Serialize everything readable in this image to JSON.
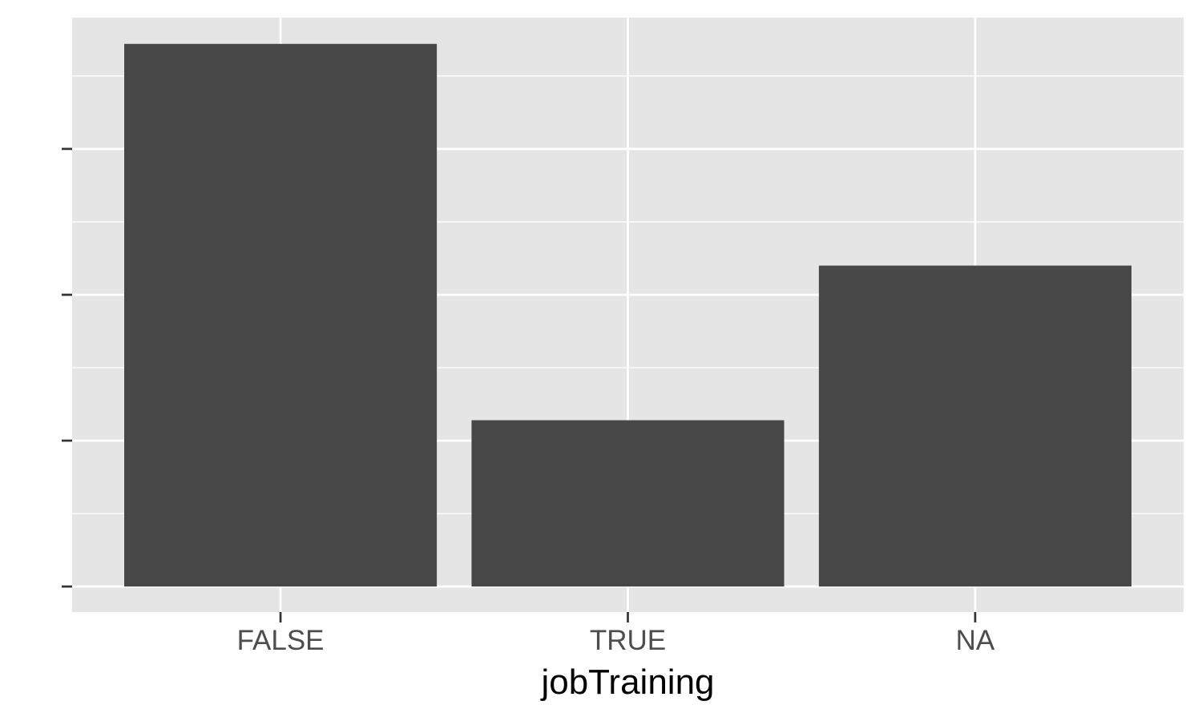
{
  "chart_data": {
    "type": "bar",
    "title": "",
    "xlabel": "jobTraining",
    "ylabel": "",
    "categories": [
      "FALSE",
      "TRUE",
      "NA"
    ],
    "values": [
      3.72,
      1.14,
      2.2
    ],
    "ylim": [
      -0.175,
      3.9
    ],
    "y_ticks": [
      0,
      1,
      2,
      3
    ],
    "y_tick_labels_shown": false,
    "grid": true,
    "legend": "none",
    "colors": {
      "panel_background": "#e5e5e5",
      "grid": "#ffffff",
      "bar": "#474747",
      "tick": "#333333",
      "tick_label": "#4d4d4d",
      "axis_title": "#000000"
    }
  }
}
